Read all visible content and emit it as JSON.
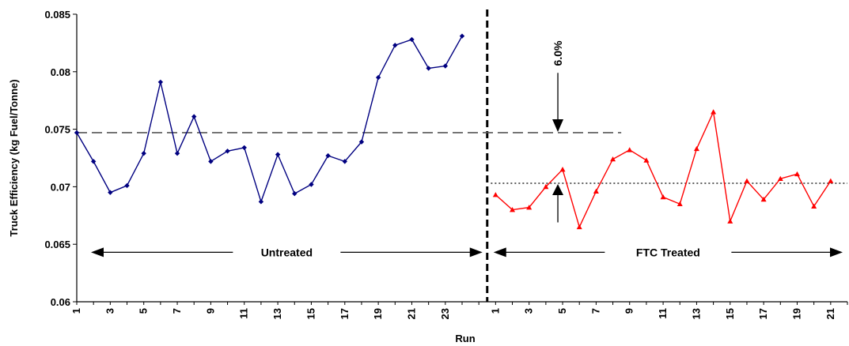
{
  "chart_data": {
    "type": "line",
    "title": "",
    "xlabel": "Run",
    "ylabel": "Truck Efficiency (kg Fuel/Tonne)",
    "ylim": [
      0.06,
      0.085
    ],
    "y_ticks": [
      "0.06",
      "0.065",
      "0.07",
      "0.075",
      "0.08",
      "0.085"
    ],
    "grid": false,
    "legend": "none",
    "series": [
      {
        "group": "untreated",
        "color": "#000080",
        "marker": "diamond",
        "x": [
          1,
          2,
          3,
          4,
          5,
          6,
          7,
          8,
          9,
          10,
          11,
          12,
          13,
          14,
          15,
          16,
          17,
          18,
          19,
          20,
          21,
          22,
          23,
          24
        ],
        "values": [
          0.0747,
          0.0722,
          0.0695,
          0.0701,
          0.0729,
          0.0791,
          0.0729,
          0.0761,
          0.0722,
          0.0731,
          0.0734,
          0.0687,
          0.0728,
          0.0694,
          0.0702,
          0.0727,
          0.0722,
          0.0739,
          0.0795,
          0.0823,
          0.0828,
          0.0803,
          0.0805,
          0.0831
        ]
      },
      {
        "group": "treated",
        "color": "#ff0000",
        "marker": "triangle",
        "x": [
          1,
          2,
          3,
          4,
          5,
          6,
          7,
          8,
          9,
          10,
          11,
          12,
          13,
          14,
          15,
          16,
          17,
          18,
          19,
          20,
          21
        ],
        "values": [
          0.0693,
          0.068,
          0.0682,
          0.07,
          0.0715,
          0.0665,
          0.0696,
          0.0724,
          0.0732,
          0.0723,
          0.0691,
          0.0685,
          0.0733,
          0.0765,
          0.067,
          0.0705,
          0.0689,
          0.0707,
          0.0711,
          0.0683,
          0.0705
        ]
      }
    ],
    "reference_lines": [
      {
        "type": "average",
        "group": "untreated",
        "style": "dashed",
        "value": 0.0747
      },
      {
        "type": "average",
        "group": "treated",
        "style": "dotted",
        "value": 0.0703
      }
    ],
    "untreated_x_ticks": [
      "1",
      "3",
      "5",
      "7",
      "9",
      "11",
      "13",
      "15",
      "17",
      "19",
      "21",
      "23"
    ],
    "treated_x_ticks": [
      "1",
      "3",
      "5",
      "7",
      "9",
      "11",
      "13",
      "15",
      "17",
      "19",
      "21"
    ],
    "annotations": {
      "untreated_label": "Untreated",
      "treated_label": "FTC Treated",
      "reduction_label": "6.0%"
    }
  }
}
